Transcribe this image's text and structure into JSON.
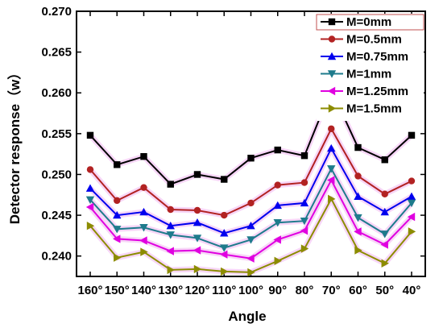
{
  "chart_data": {
    "type": "line",
    "xlabel": "Angle",
    "ylabel": "Detector response（w）",
    "x": [
      "160°",
      "150°",
      "140°",
      "130°",
      "120°",
      "110°",
      "100°",
      "90°",
      "80°",
      "70°",
      "60°",
      "50°",
      "40°"
    ],
    "ylim": [
      0.2375,
      0.27
    ],
    "yticks": [
      "0.240",
      "0.245",
      "0.250",
      "0.255",
      "0.260",
      "0.265",
      "0.270"
    ],
    "grid": false,
    "legend_position": "top-right",
    "series": [
      {
        "name": "M=0mm",
        "color": "#000000",
        "marker": "square",
        "values": [
          0.2548,
          0.2512,
          0.2522,
          0.2488,
          0.25,
          0.2494,
          0.252,
          0.253,
          0.2523,
          0.2604,
          0.2533,
          0.2518,
          0.2548
        ]
      },
      {
        "name": "M=0.5mm",
        "color": "#b22222",
        "marker": "circle",
        "values": [
          0.2506,
          0.2468,
          0.2484,
          0.2457,
          0.2456,
          0.245,
          0.2465,
          0.2487,
          0.249,
          0.2556,
          0.2498,
          0.2476,
          0.2492
        ]
      },
      {
        "name": "M=0.75mm",
        "color": "#0000ee",
        "marker": "triangle-up",
        "values": [
          0.2483,
          0.245,
          0.2454,
          0.2437,
          0.2441,
          0.2428,
          0.2437,
          0.2462,
          0.2465,
          0.2532,
          0.2473,
          0.2454,
          0.2473
        ]
      },
      {
        "name": "M=1mm",
        "color": "#1e7b8c",
        "marker": "triangle-down",
        "values": [
          0.2469,
          0.2433,
          0.2435,
          0.2426,
          0.2422,
          0.241,
          0.242,
          0.2441,
          0.2443,
          0.2507,
          0.2447,
          0.2427,
          0.2465
        ]
      },
      {
        "name": "M=1.25mm",
        "color": "#e000e0",
        "marker": "triangle-left",
        "values": [
          0.246,
          0.2421,
          0.2419,
          0.2406,
          0.2407,
          0.2402,
          0.2397,
          0.242,
          0.2431,
          0.2493,
          0.243,
          0.2414,
          0.2448
        ]
      },
      {
        "name": "M=1.5mm",
        "color": "#8c8c00",
        "marker": "triangle-right",
        "values": [
          0.2437,
          0.2398,
          0.2405,
          0.2383,
          0.2384,
          0.2381,
          0.238,
          0.2394,
          0.2409,
          0.247,
          0.2407,
          0.2391,
          0.243
        ]
      }
    ]
  }
}
